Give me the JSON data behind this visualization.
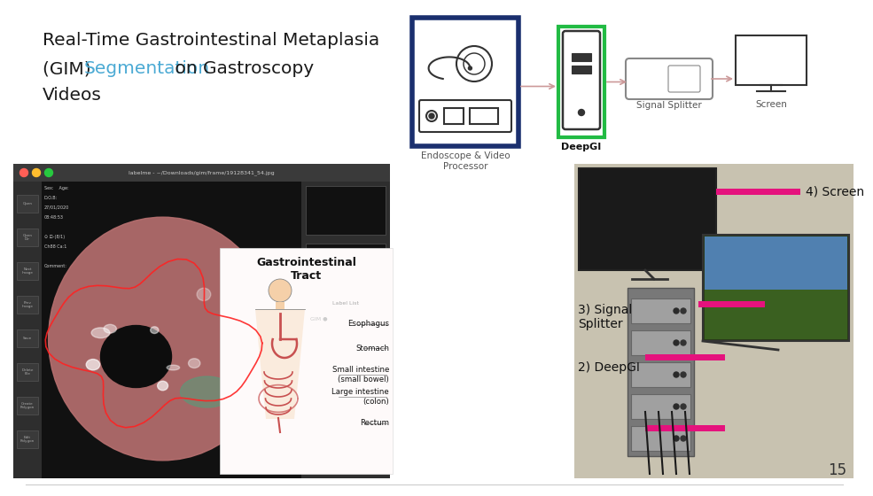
{
  "bg_color": "#ffffff",
  "title_line1": "Real-Time Gastrointestinal Metaplasia",
  "title_line2_black1": "(GIM) ",
  "title_line2_cyan": "Segmentation",
  "title_line2_black2": " on Gastroscopy",
  "title_line3": "Videos",
  "title_fontsize": 14.5,
  "title_color": "#1a1a1a",
  "cyan_color": "#4baad4",
  "slide_number": "15",
  "dark_blue_border": "#1a2f6e",
  "green_border": "#22bb44",
  "arrow_color": "#cc9999",
  "label_endoscope": "Endoscope & Video\nProcessor",
  "label_deepgi": "DeepGI",
  "label_splitter": "Signal Splitter",
  "label_screen": "Screen",
  "label_screen_num": "4) Screen",
  "label_splitter_num": "3) Signal\nSplitter",
  "label_deepgi_num": "2) DeepGI",
  "magenta_color": "#e5127d",
  "gi_title": "Gastrointestinal\nTract",
  "gi_labels": [
    "Esophagus",
    "Stomach",
    "Small intestine\n(small bowel)",
    "Large intestine\n(colon)",
    "Rectum"
  ],
  "icon_color": "#333333",
  "icon_lw": 1.5
}
